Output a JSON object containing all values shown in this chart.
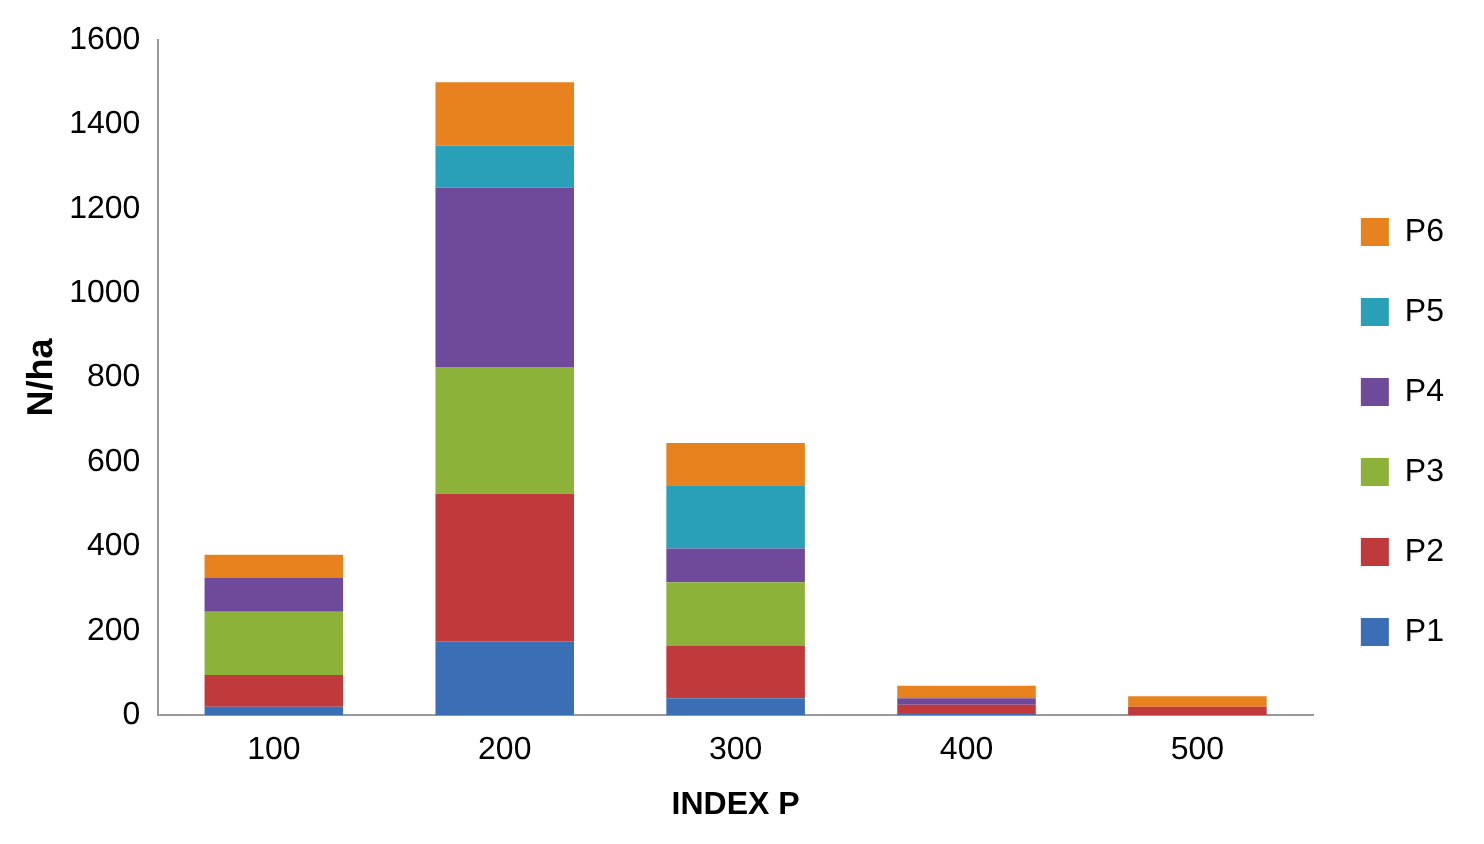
{
  "chart_data": {
    "type": "bar",
    "stacked": true,
    "xlabel": "INDEX P",
    "ylabel": "N/ha",
    "categories": [
      "100",
      "200",
      "300",
      "400",
      "500"
    ],
    "series": [
      {
        "name": "P1",
        "color": "#3a6fb5",
        "values": [
          20,
          175,
          40,
          5,
          0
        ]
      },
      {
        "name": "P2",
        "color": "#c0393b",
        "values": [
          75,
          350,
          125,
          20,
          20
        ]
      },
      {
        "name": "P3",
        "color": "#8db23a",
        "values": [
          150,
          300,
          150,
          0,
          0
        ]
      },
      {
        "name": "P4",
        "color": "#6f4a9a",
        "values": [
          80,
          425,
          80,
          15,
          0
        ]
      },
      {
        "name": "P5",
        "color": "#2aa0b8",
        "values": [
          0,
          100,
          150,
          0,
          0
        ]
      },
      {
        "name": "P6",
        "color": "#e8821e",
        "values": [
          55,
          150,
          100,
          30,
          25
        ]
      }
    ],
    "ylim": [
      0,
      1600
    ],
    "yticks": [
      0,
      200,
      400,
      600,
      800,
      1000,
      1200,
      1400,
      1600
    ],
    "grid": false,
    "legend": "right"
  }
}
